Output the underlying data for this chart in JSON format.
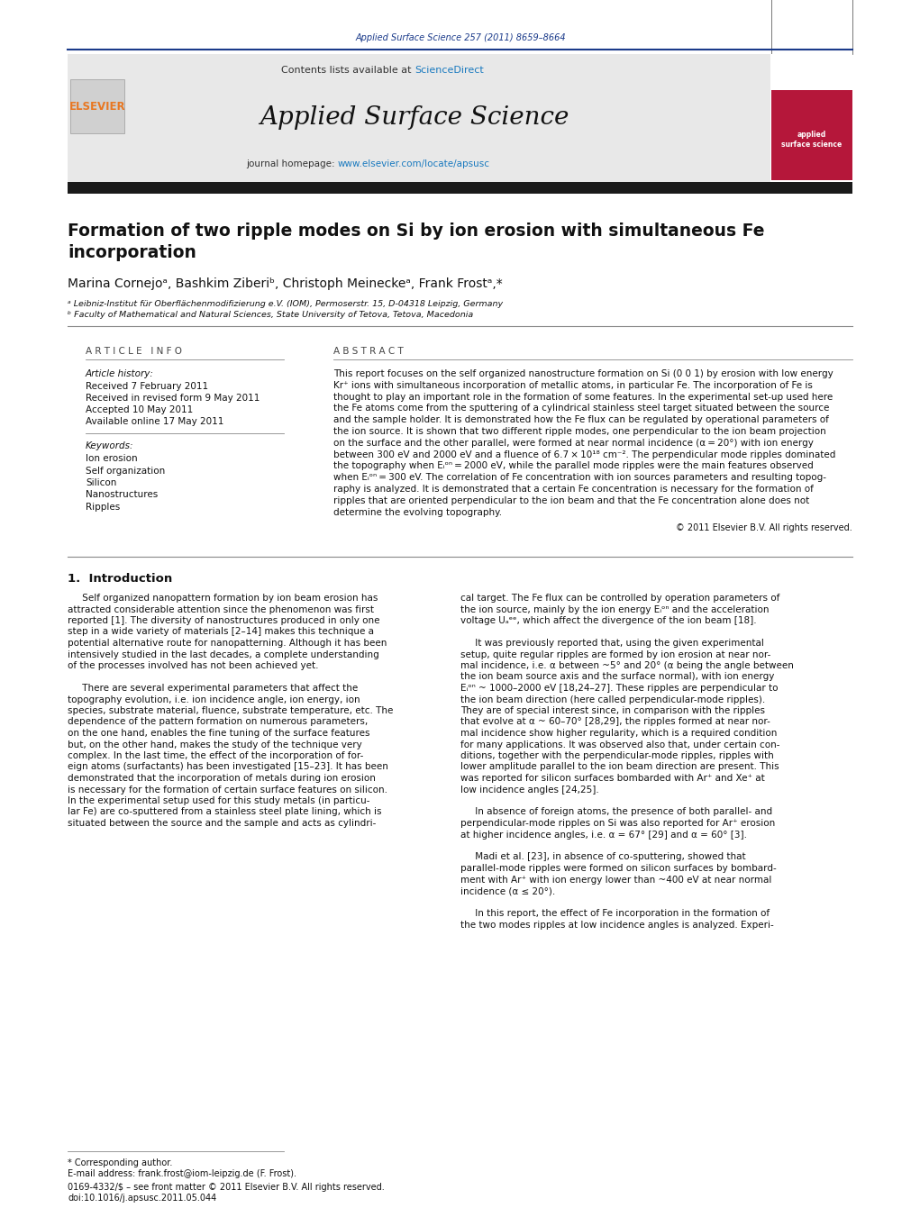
{
  "page_width": 10.21,
  "page_height": 13.51,
  "bg_color": "#ffffff",
  "top_journal_ref": "Applied Surface Science 257 (2011) 8659–8664",
  "top_journal_ref_color": "#1a3a8a",
  "header_bg": "#e8e8e8",
  "header_sciencedirect_color": "#1a7abf",
  "journal_homepage_url_color": "#1a7abf",
  "elsevier_color": "#e87722",
  "divider_color": "#1a3a8a",
  "dark_bar_color": "#1a1a1a",
  "article_title_line1": "Formation of two ripple modes on Si by ion erosion with simultaneous Fe",
  "article_title_line2": "incorporation",
  "authors": "Marina Cornejoᵃ, Bashkim Ziberiᵇ, Christoph Meineckeᵃ, Frank Frostᵃ,*",
  "affiliation_a": "ᵃ Leibniz-Institut für Oberflächenmodifizierung e.V. (IOM), Permoserstr. 15, D-04318 Leipzig, Germany",
  "affiliation_b": "ᵇ Faculty of Mathematical and Natural Sciences, State University of Tetova, Tetova, Macedonia",
  "article_history_label": "Article history:",
  "received": "Received 7 February 2011",
  "received_revised": "Received in revised form 9 May 2011",
  "accepted": "Accepted 10 May 2011",
  "available": "Available online 17 May 2011",
  "keywords_label": "Keywords:",
  "keywords": [
    "Ion erosion",
    "Self organization",
    "Silicon",
    "Nanostructures",
    "Ripples"
  ],
  "copyright": "© 2011 Elsevier B.V. All rights reserved.",
  "intro_title": "1.  Introduction",
  "footnote_star": "* Corresponding author.",
  "footnote_email": "E-mail address: frank.frost@iom-leipzig.de (F. Frost).",
  "footnote_issn": "0169-4332/$ – see front matter © 2011 Elsevier B.V. All rights reserved.",
  "footnote_doi": "doi:10.1016/j.apsusc.2011.05.044",
  "abstract_lines": [
    "This report focuses on the self organized nanostructure formation on Si (0 0 1) by erosion with low energy",
    "Kr⁺ ions with simultaneous incorporation of metallic atoms, in particular Fe. The incorporation of Fe is",
    "thought to play an important role in the formation of some features. In the experimental set-up used here",
    "the Fe atoms come from the sputtering of a cylindrical stainless steel target situated between the source",
    "and the sample holder. It is demonstrated how the Fe flux can be regulated by operational parameters of",
    "the ion source. It is shown that two different ripple modes, one perpendicular to the ion beam projection",
    "on the surface and the other parallel, were formed at near normal incidence (α = 20°) with ion energy",
    "between 300 eV and 2000 eV and a fluence of 6.7 × 10¹⁸ cm⁻². The perpendicular mode ripples dominated",
    "the topography when Eᵢᵒⁿ = 2000 eV, while the parallel mode ripples were the main features observed",
    "when Eᵢᵒⁿ = 300 eV. The correlation of Fe concentration with ion sources parameters and resulting topog-",
    "raphy is analyzed. It is demonstrated that a certain Fe concentration is necessary for the formation of",
    "ripples that are oriented perpendicular to the ion beam and that the Fe concentration alone does not",
    "determine the evolving topography."
  ],
  "left_col_lines": [
    "     Self organized nanopattern formation by ion beam erosion has",
    "attracted considerable attention since the phenomenon was first",
    "reported [1]. The diversity of nanostructures produced in only one",
    "step in a wide variety of materials [2–14] makes this technique a",
    "potential alternative route for nanopatterning. Although it has been",
    "intensively studied in the last decades, a complete understanding",
    "of the processes involved has not been achieved yet.",
    "",
    "     There are several experimental parameters that affect the",
    "topography evolution, i.e. ion incidence angle, ion energy, ion",
    "species, substrate material, fluence, substrate temperature, etc. The",
    "dependence of the pattern formation on numerous parameters,",
    "on the one hand, enables the fine tuning of the surface features",
    "but, on the other hand, makes the study of the technique very",
    "complex. In the last time, the effect of the incorporation of for-",
    "eign atoms (surfactants) has been investigated [15–23]. It has been",
    "demonstrated that the incorporation of metals during ion erosion",
    "is necessary for the formation of certain surface features on silicon.",
    "In the experimental setup used for this study metals (in particu-",
    "lar Fe) are co-sputtered from a stainless steel plate lining, which is",
    "situated between the source and the sample and acts as cylindri-"
  ],
  "right_col_lines": [
    "cal target. The Fe flux can be controlled by operation parameters of",
    "the ion source, mainly by the ion energy Eᵢᵒⁿ and the acceleration",
    "voltage Uₐᵉᵉ, which affect the divergence of the ion beam [18].",
    "",
    "     It was previously reported that, using the given experimental",
    "setup, quite regular ripples are formed by ion erosion at near nor-",
    "mal incidence, i.e. α between ~5° and 20° (α being the angle between",
    "the ion beam source axis and the surface normal), with ion energy",
    "Eᵢᵒⁿ ~ 1000–2000 eV [18,24–27]. These ripples are perpendicular to",
    "the ion beam direction (here called perpendicular-mode ripples).",
    "They are of special interest since, in comparison with the ripples",
    "that evolve at α ~ 60–70° [28,29], the ripples formed at near nor-",
    "mal incidence show higher regularity, which is a required condition",
    "for many applications. It was observed also that, under certain con-",
    "ditions, together with the perpendicular-mode ripples, ripples with",
    "lower amplitude parallel to the ion beam direction are present. This",
    "was reported for silicon surfaces bombarded with Ar⁺ and Xe⁺ at",
    "low incidence angles [24,25].",
    "",
    "     In absence of foreign atoms, the presence of both parallel- and",
    "perpendicular-mode ripples on Si was also reported for Ar⁺ erosion",
    "at higher incidence angles, i.e. α = 67° [29] and α = 60° [3].",
    "",
    "     Madi et al. [23], in absence of co-sputtering, showed that",
    "parallel-mode ripples were formed on silicon surfaces by bombard-",
    "ment with Ar⁺ with ion energy lower than ~400 eV at near normal",
    "incidence (α ≤ 20°).",
    "",
    "     In this report, the effect of Fe incorporation in the formation of",
    "the two modes ripples at low incidence angles is analyzed. Experi-"
  ]
}
